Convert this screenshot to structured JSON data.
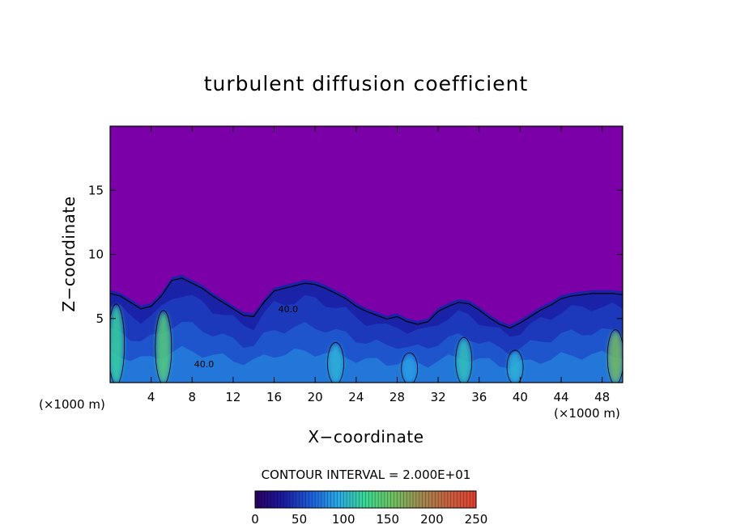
{
  "chart_data": {
    "type": "heatmap",
    "title": "turbulent diffusion coefficient",
    "xlabel": "X−coordinate",
    "ylabel": "Z−coordinate",
    "x_unit_left": "(×1000 m)",
    "x_unit_right": "(×1000 m)",
    "xlim": [
      0,
      50
    ],
    "ylim": [
      0,
      20
    ],
    "x_ticks": [
      4,
      8,
      12,
      16,
      20,
      24,
      28,
      32,
      36,
      40,
      44,
      48
    ],
    "x_tick_labels": [
      "4",
      "8",
      "12",
      "16",
      "20",
      "24",
      "28",
      "32",
      "36",
      "40",
      "44",
      "48"
    ],
    "y_ticks": [
      5,
      10,
      15
    ],
    "y_tick_labels": [
      "5",
      "10",
      "15"
    ],
    "background_color": "#7b00a8",
    "contour_interval_text": "CONTOUR INTERVAL = 2.000E+01",
    "inline_contour_labels": [
      "40.0",
      "40.0"
    ],
    "colorbar": {
      "range": [
        0,
        250
      ],
      "tick_values": [
        0,
        50,
        100,
        150,
        200,
        250
      ],
      "tick_labels": [
        "0",
        "50",
        "100",
        "150",
        "200",
        "250"
      ],
      "stops": [
        "#2a0060",
        "#1a1aa0",
        "#1e5cd8",
        "#2aa8e8",
        "#3ad890",
        "#70c060",
        "#a08a50",
        "#c86040",
        "#e04030"
      ]
    },
    "turbulent_layer_top": {
      "x": [
        0,
        1,
        2,
        3,
        4,
        5,
        6,
        7,
        8,
        9,
        10,
        11,
        12,
        13,
        14,
        15,
        16,
        17,
        18,
        19,
        20,
        21,
        22,
        23,
        24,
        25,
        26,
        27,
        28,
        29,
        30,
        31,
        32,
        33,
        34,
        35,
        36,
        37,
        38,
        39,
        40,
        41,
        42,
        43,
        44,
        45,
        46,
        47,
        48,
        49,
        50
      ],
      "z": [
        7.2,
        7.0,
        6.5,
        6.0,
        6.2,
        7.0,
        8.2,
        8.4,
        8.0,
        7.6,
        7.0,
        6.5,
        6.0,
        5.5,
        5.4,
        6.5,
        7.4,
        7.6,
        7.8,
        8.0,
        7.9,
        7.6,
        7.2,
        6.8,
        6.2,
        5.8,
        5.5,
        5.2,
        5.4,
        5.0,
        4.8,
        5.0,
        5.8,
        6.2,
        6.5,
        6.4,
        5.9,
        5.3,
        4.8,
        4.5,
        4.9,
        5.4,
        5.9,
        6.3,
        6.8,
        7.0,
        7.1,
        7.2,
        7.2,
        7.2,
        7.1
      ]
    },
    "high_value_cores": [
      {
        "x": 5.2,
        "z_top": 5.5,
        "level": 140
      },
      {
        "x": 0.6,
        "z_top": 6.0,
        "level": 120
      },
      {
        "x": 49.3,
        "z_top": 4.0,
        "level": 160
      },
      {
        "x": 22.0,
        "z_top": 3.0,
        "level": 100
      },
      {
        "x": 34.5,
        "z_top": 3.4,
        "level": 110
      },
      {
        "x": 29.2,
        "z_top": 2.2,
        "level": 90
      },
      {
        "x": 39.5,
        "z_top": 2.4,
        "level": 100
      }
    ]
  }
}
